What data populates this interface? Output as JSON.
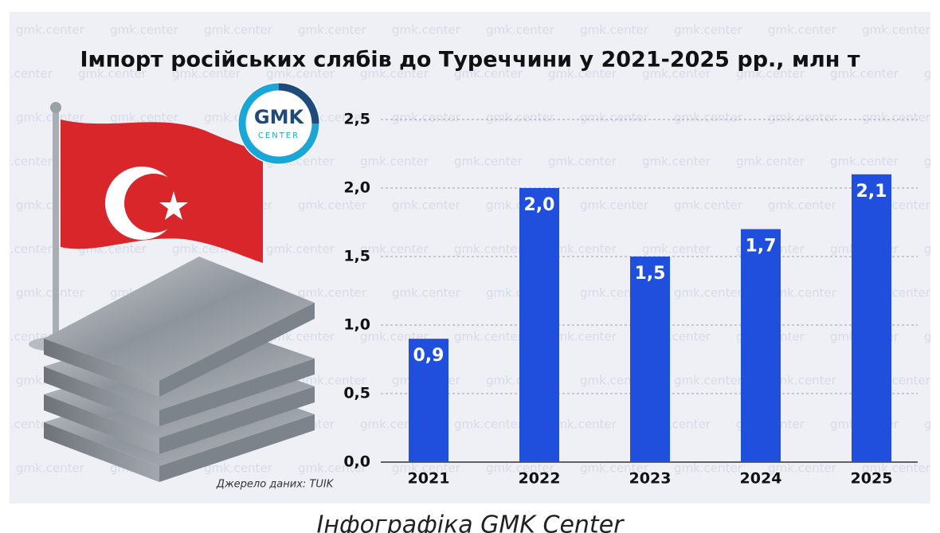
{
  "chart_data": {
    "type": "bar",
    "title": "Імпорт російських слябів до Туреччини у 2021-2025 рр., млн т",
    "categories": [
      "2021",
      "2022",
      "2023",
      "2024",
      "2025"
    ],
    "values": [
      0.9,
      2.0,
      1.5,
      1.7,
      2.1
    ],
    "value_labels": [
      "0,9",
      "2,0",
      "1,5",
      "1,7",
      "2,1"
    ],
    "color": "#1f4fdc",
    "ylim": [
      0,
      2.5
    ],
    "yticks": [
      {
        "value": 0,
        "label": "0,0"
      },
      {
        "value": 0.5,
        "label": "0,5"
      },
      {
        "value": 1,
        "label": "1,0"
      },
      {
        "value": 1.5,
        "label": "1,5"
      },
      {
        "value": 2,
        "label": "2,0"
      },
      {
        "value": 2.5,
        "label": "2,5"
      }
    ],
    "grid": true,
    "source": "Джерело даних: TUIK"
  },
  "logo": {
    "text": "GMK",
    "subtext": "CENTER"
  },
  "watermark": "gmk.center",
  "caption": "Інфографіка GMK Center"
}
